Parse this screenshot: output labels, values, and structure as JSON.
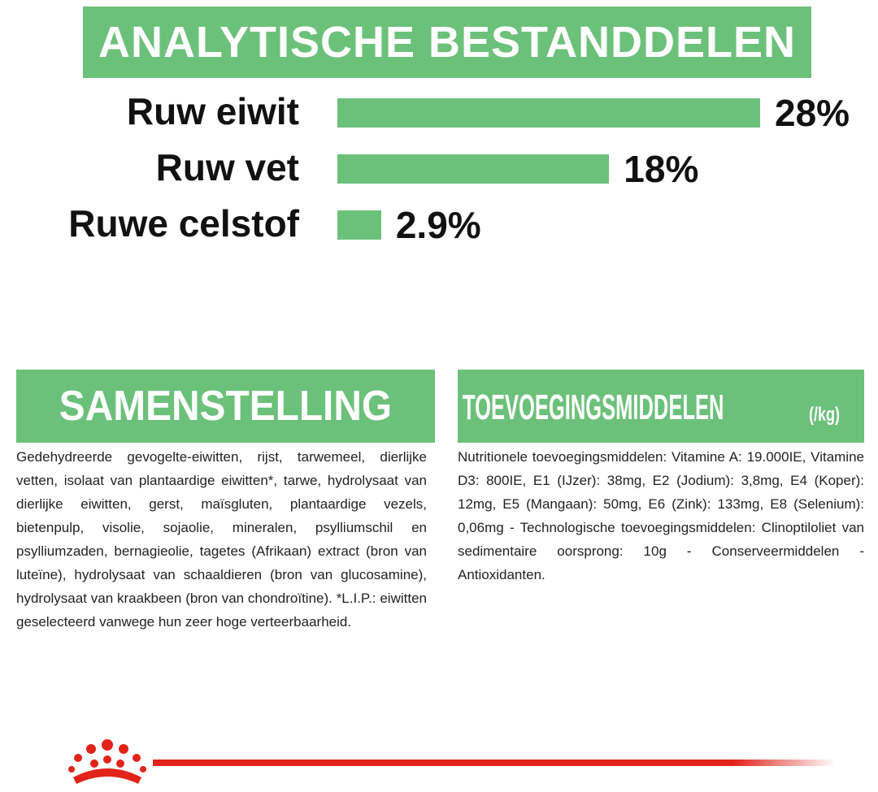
{
  "chart_data": {
    "type": "bar",
    "orientation": "horizontal",
    "title": "ANALYTISCHE BESTANDDELEN",
    "categories": [
      "Ruw eiwit",
      "Ruw vet",
      "Ruwe celstof"
    ],
    "values": [
      28,
      18,
      2.9
    ],
    "value_labels": [
      "28%",
      "18%",
      "2.9%"
    ],
    "color": "#6cc17a"
  },
  "composition": {
    "title": "SAMENSTELLING",
    "text": "Gedehydreerde gevogelte-eiwitten, rijst, tarwemeel, dierlijke vetten, isolaat van plantaardige eiwitten*, tarwe, hydrolysaat van dierlijke eiwitten, gerst, maïsgluten, plantaardige vezels, bietenpulp, visolie, sojaolie, mineralen, psylliumschil en psylliumzaden, bernagieolie, tagetes (Afrikaan) extract (bron van luteïne), hydrolysaat van schaaldieren (bron van glucosamine), hydrolysaat van kraakbeen (bron van chondroïtine). *L.I.P.: eiwitten geselecteerd vanwege hun zeer hoge verteerbaarheid."
  },
  "additives": {
    "title": "TOEVOEGINGSMIDDELEN",
    "unit": "(/kg)",
    "text": "Nutritionele toevoegingsmiddelen: Vitamine A: 19.000IE, Vitamine D3: 800IE, E1 (IJzer): 38mg, E2 (Jodium): 3,8mg, E4 (Koper): 12mg, E5 (Mangaan): 50mg, E6 (Zink): 133mg, E8 (Selenium): 0,06mg - Technologische toevoegingsmiddelen: Clinoptiloliet van sedimentaire oorsprong: 10g - Conserveermiddelen - Antioxidanten."
  }
}
